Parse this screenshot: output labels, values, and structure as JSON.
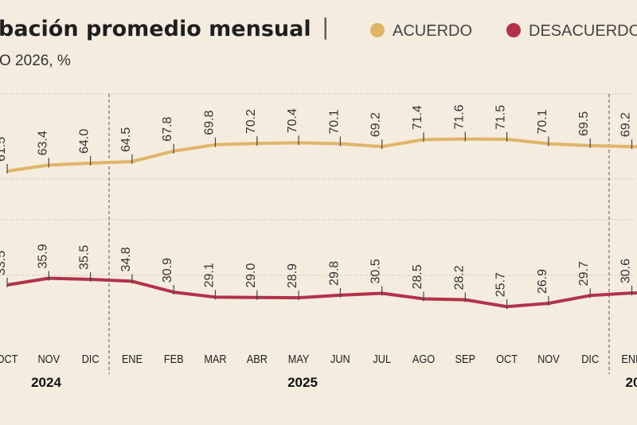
{
  "title": "bación promedio mensual",
  "title_separator": "|",
  "subtitle": "O 2026, %",
  "colors": {
    "acuerdo": "#e0b568",
    "desacuerdo": "#b23349",
    "background": "#f4ecdf",
    "grid": "#cfc6b8"
  },
  "chart_data": {
    "type": "line",
    "categories": [
      "OCT",
      "NOV",
      "DIC",
      "ENE",
      "FEB",
      "MAR",
      "ABR",
      "MAY",
      "JUN",
      "JUL",
      "AGO",
      "SEP",
      "OCT",
      "NOV",
      "DIC",
      "ENE"
    ],
    "years": [
      {
        "label": "2024"
      },
      {
        "label": "2025"
      },
      {
        "label": "20"
      }
    ],
    "series": [
      {
        "name": "ACUERDO",
        "key": "acuerdo",
        "values": [
          61.5,
          63.4,
          64.0,
          64.5,
          67.8,
          69.8,
          70.2,
          70.4,
          70.1,
          69.2,
          71.4,
          71.6,
          71.5,
          70.1,
          69.5,
          69.2
        ]
      },
      {
        "name": "DESACUERDO",
        "key": "desacuerdo",
        "values": [
          33.5,
          35.9,
          35.5,
          34.8,
          30.9,
          29.1,
          29.0,
          28.9,
          29.8,
          30.5,
          28.5,
          28.2,
          25.7,
          26.9,
          29.7,
          30.6
        ]
      }
    ],
    "legend_position": "top-right",
    "grid": true
  }
}
